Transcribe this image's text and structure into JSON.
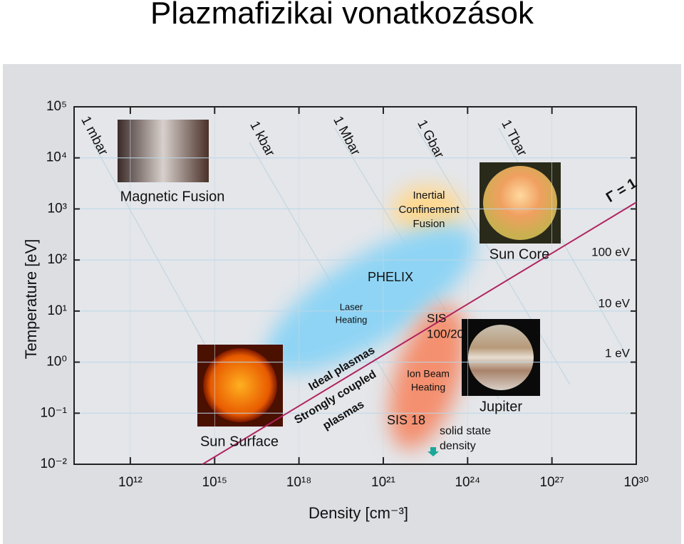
{
  "header": {
    "title": "Plazmafizikai vonatkozások"
  },
  "chart_data": {
    "type": "line",
    "xlabel": "Density [cm⁻³]",
    "ylabel": "Temperature [eV]",
    "log_x": true,
    "log_y": true,
    "grid": true,
    "xlim": [
      10000000000.0,
      1e+30
    ],
    "ylim": [
      0.01,
      100000
    ],
    "xticks": [
      {
        "value": 1000000000000.0,
        "label": "10¹²"
      },
      {
        "value": 1000000000000000.0,
        "label": "10¹⁵"
      },
      {
        "value": 1e+18,
        "label": "10¹⁸"
      },
      {
        "value": 1e+21,
        "label": "10²¹"
      },
      {
        "value": 1e+24,
        "label": "10²⁴"
      },
      {
        "value": 1e+27,
        "label": "10²⁷"
      },
      {
        "value": 1e+30,
        "label": "10³⁰"
      }
    ],
    "yticks": [
      {
        "value": 0.01,
        "label": "10⁻²"
      },
      {
        "value": 0.1,
        "label": "10⁻¹"
      },
      {
        "value": 1,
        "label": "10⁰"
      },
      {
        "value": 10,
        "label": "10¹"
      },
      {
        "value": 100,
        "label": "10²"
      },
      {
        "value": 1000,
        "label": "10³"
      },
      {
        "value": 10000,
        "label": "10⁴"
      },
      {
        "value": 100000,
        "label": "10⁵"
      }
    ],
    "series": [
      {
        "name": "Γ = 1",
        "color": "#b0245f",
        "x": [
          370000000000000.0,
          1e+30
        ],
        "values": [
          0.01,
          1350
        ]
      }
    ],
    "isobars": [
      "1 mbar",
      "1 kbar",
      "1 Mbar",
      "1 Gbar",
      "1 Tbar"
    ],
    "energy_labels": [
      "100 eV",
      "10 eV",
      "1 eV"
    ],
    "regions": [
      [
        "Magnetic Fusion"
      ],
      [
        "Inertial",
        "Confinement",
        "Fusion"
      ],
      [
        "Sun Core"
      ],
      [
        "PHELIX"
      ],
      [
        "Laser",
        "Heating"
      ],
      [
        "SIS",
        "100/20"
      ],
      [
        "Ion Beam",
        "Heating"
      ],
      [
        "SIS 18"
      ],
      [
        "Jupiter"
      ],
      [
        "Sun Surface"
      ],
      [
        "solid state",
        "density"
      ]
    ],
    "plasma_labels": [
      [
        "Ideal plasmas"
      ],
      [
        "Strongly coupled",
        "plasmas"
      ]
    ]
  }
}
